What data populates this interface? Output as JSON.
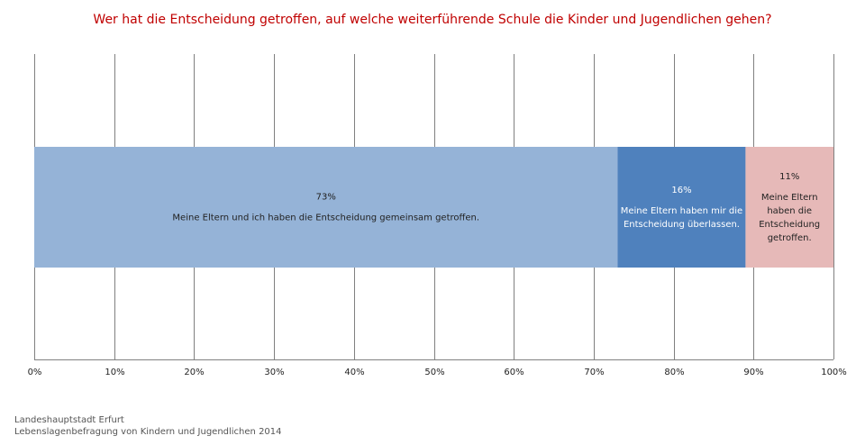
{
  "chart_data": {
    "type": "bar",
    "orientation": "horizontal",
    "stacked": true,
    "title": "Wer hat die Entscheidung getroffen, auf welche weiterführende Schule die Kinder und Jugendlichen gehen?",
    "xlim": [
      0,
      100
    ],
    "x_ticks": [
      "0%",
      "10%",
      "20%",
      "30%",
      "40%",
      "50%",
      "60%",
      "70%",
      "80%",
      "90%",
      "100%"
    ],
    "grid": true,
    "legend": "none",
    "series": [
      {
        "value": 73,
        "value_label": "73%",
        "label_lines": [
          "Meine Eltern und ich haben die Entscheidung gemeinsam getroffen."
        ],
        "color": "#95b3d7"
      },
      {
        "value": 16,
        "value_label": "16%",
        "label_lines": [
          "Meine Eltern haben mir die",
          "Entscheidung überlassen."
        ],
        "color": "#4f81bd"
      },
      {
        "value": 11,
        "value_label": "11%",
        "label_lines": [
          "Meine Eltern",
          "haben die",
          "Entscheidung",
          "getroffen."
        ],
        "color": "#e6b9b8"
      }
    ]
  },
  "source": {
    "line1": "Landeshauptstadt Erfurt",
    "line2": "Lebenslagenbefragung von Kindern und Jugendlichen 2014"
  },
  "colors": {
    "title": "#c00000",
    "grid": "#808080",
    "text": "#222222"
  }
}
